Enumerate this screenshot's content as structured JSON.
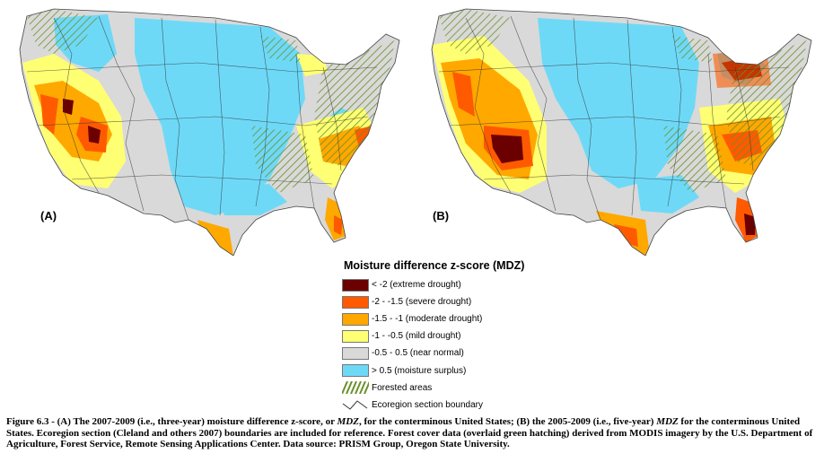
{
  "panels": [
    {
      "label": "(A)"
    },
    {
      "label": "(B)"
    }
  ],
  "legend": {
    "title": "Moisture difference z-score (MDZ)",
    "items": [
      {
        "label": "< -2 (extreme drought)",
        "color": "#6b0000"
      },
      {
        "label": "-2 - -1.5 (severe drought)",
        "color": "#ff5a00"
      },
      {
        "label": "-1.5 - -1 (moderate drought)",
        "color": "#ffa800"
      },
      {
        "label": "-1 - -0.5 (mild drought)",
        "color": "#ffff73"
      },
      {
        "label": "-0.5 - 0.5 (near normal)",
        "color": "#d9d9d9"
      },
      {
        "label": "> 0.5 (moisture surplus)",
        "color": "#6ed9f7"
      }
    ],
    "forested_label": "Forested areas",
    "forested_color": "#6b8f2a",
    "boundary_label": "Ecoregion section boundary"
  },
  "caption": {
    "part1": "Figure 6.3 - (A) The 2007-2009 (i.e., three-year) moisture difference z-score, or ",
    "italic1": "MDZ",
    "part2": ", for the conterminous United States; (B) the 2005-2009 (i.e., five-year) ",
    "italic2": "MDZ",
    "part3": " for the conterminous United States. Ecoregion section (Cleland and others 2007) boundaries are included for reference. Forest cover data (overlaid green hatching) derived from MODIS imagery by the U.S. Department of Agriculture, Forest Service, Remote Sensing Applications Center. Data source: PRISM Group, Oregon State University."
  }
}
